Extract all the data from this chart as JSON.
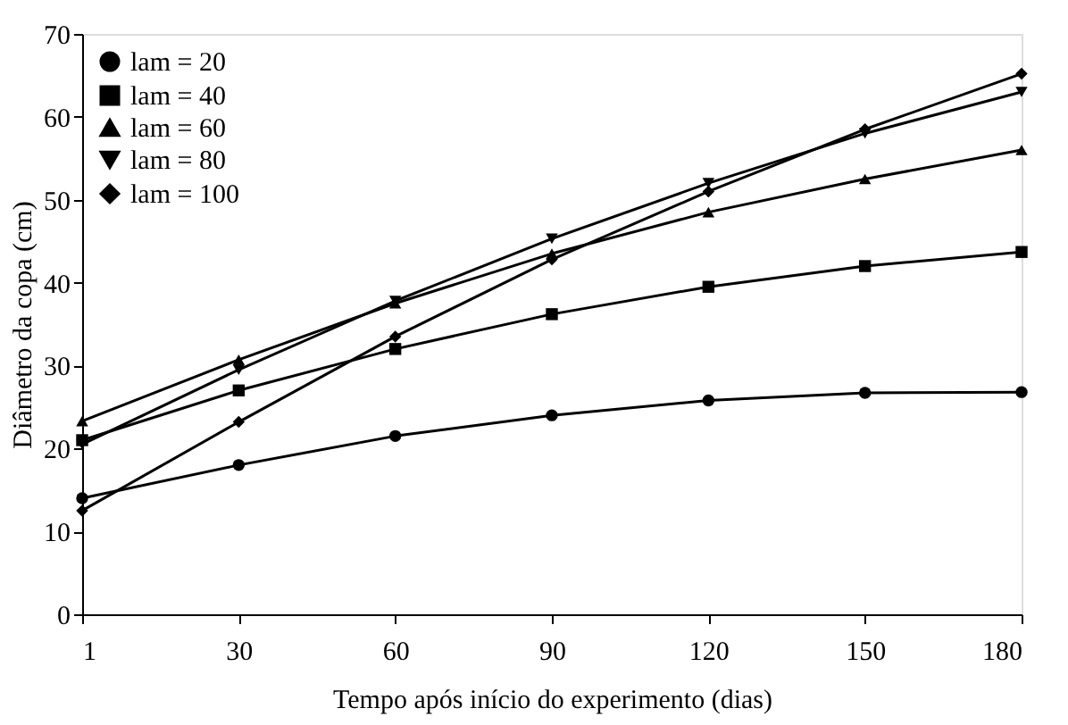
{
  "chart_data": {
    "type": "line",
    "xlabel": "Tempo após início do experimento (dias)",
    "ylabel": "Diâmetro da copa (cm)",
    "categories": [
      "1",
      "30",
      "60",
      "90",
      "120",
      "150",
      "180"
    ],
    "ylim": [
      0,
      70
    ],
    "yticks": [
      0,
      10,
      20,
      30,
      40,
      50,
      60,
      70
    ],
    "grid": false,
    "legend": "top left",
    "line_style": "solid",
    "series": [
      {
        "name": "lam = 20",
        "color": "#000000",
        "marker": "circle",
        "values": [
          14,
          18,
          21.5,
          24,
          25.8,
          26.7,
          26.8
        ]
      },
      {
        "name": "lam = 40",
        "color": "#000000",
        "marker": "square",
        "values": [
          21,
          27,
          32,
          36.2,
          39.5,
          42,
          43.7
        ]
      },
      {
        "name": "lam = 60",
        "color": "#000000",
        "marker": "triangle",
        "values": [
          23.3,
          30.7,
          37.5,
          43.5,
          48.5,
          52.5,
          56
        ]
      },
      {
        "name": "lam = 80",
        "color": "#000000",
        "marker": "triangle-down",
        "values": [
          20.5,
          29.5,
          37.8,
          45.3,
          52,
          58,
          63
        ]
      },
      {
        "name": "lam = 100",
        "color": "#000000",
        "marker": "diamond",
        "values": [
          12.5,
          23.2,
          33.5,
          42.8,
          51,
          58.5,
          65.2
        ]
      }
    ]
  }
}
